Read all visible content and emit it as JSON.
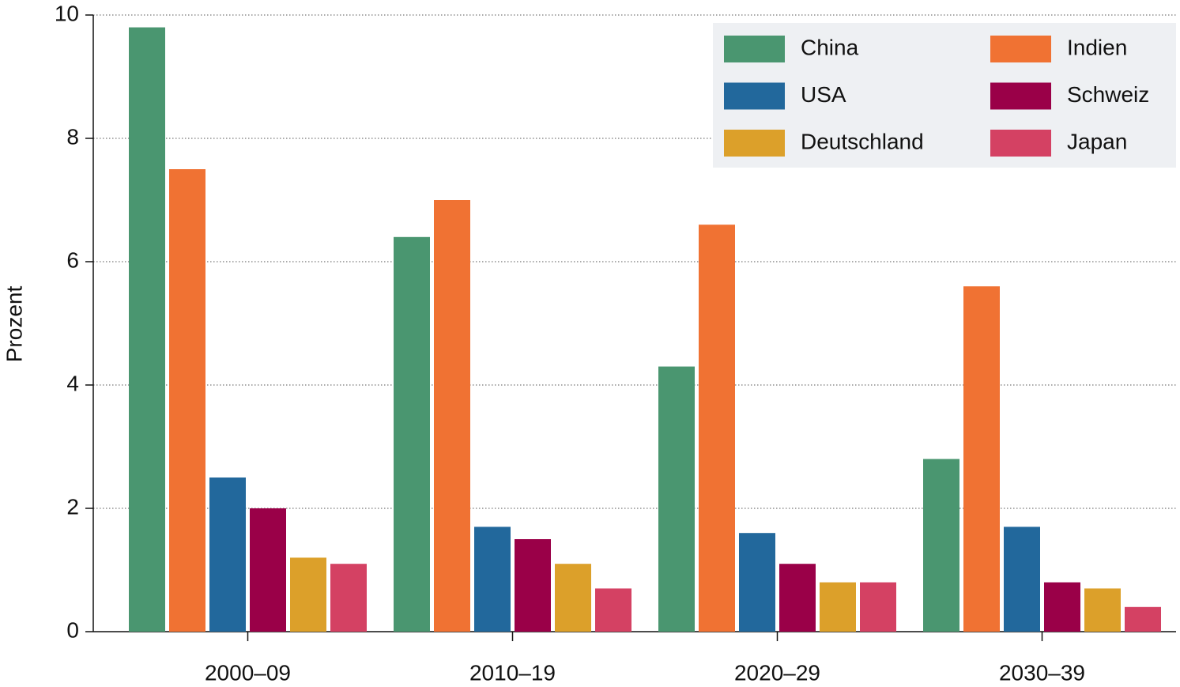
{
  "chart_data": {
    "type": "bar",
    "categories": [
      "2000–09",
      "2010–19",
      "2020–29",
      "2030–39"
    ],
    "y_label": "Prozent",
    "series": [
      {
        "name": "China",
        "color": "#4a9670",
        "values": [
          9.8,
          6.4,
          4.3,
          2.8
        ]
      },
      {
        "name": "Indien",
        "color": "#f07233",
        "values": [
          7.5,
          7.0,
          6.6,
          5.6
        ]
      },
      {
        "name": "USA",
        "color": "#22689c",
        "values": [
          2.5,
          1.7,
          1.6,
          1.7
        ]
      },
      {
        "name": "Schweiz",
        "color": "#9a0048",
        "values": [
          2.0,
          1.5,
          1.1,
          0.8
        ]
      },
      {
        "name": "Deutschland",
        "color": "#dca02a",
        "values": [
          1.2,
          1.1,
          0.8,
          0.7
        ]
      },
      {
        "name": "Japan",
        "color": "#d44163",
        "values": [
          1.1,
          0.7,
          0.8,
          0.4
        ]
      }
    ],
    "ylim": [
      0,
      10
    ],
    "yticks": [
      0,
      2,
      4,
      6,
      8,
      10
    ],
    "grid": true,
    "legend": "upper right"
  }
}
